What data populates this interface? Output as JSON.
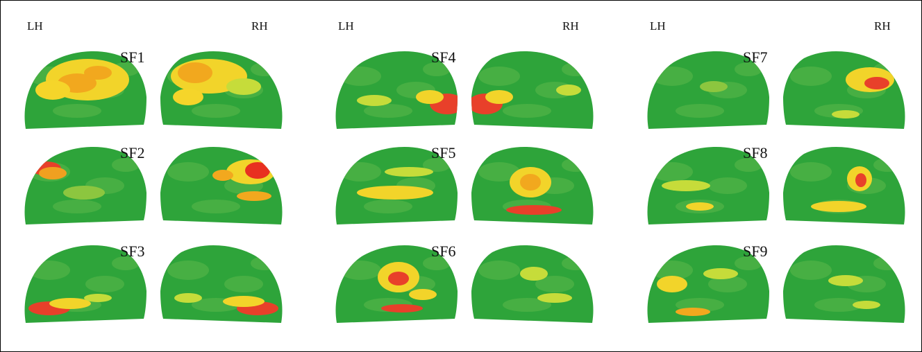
{
  "figure": {
    "columns": [
      {
        "left_label": "LH",
        "right_label": "RH",
        "maps": [
          {
            "label": "SF1",
            "left_blobs": [
              [
                95,
                45,
                60,
                30,
                "#f2d42a"
              ],
              [
                80,
                50,
                28,
                14,
                "#f2a81e"
              ],
              [
                45,
                60,
                25,
                14,
                "#f5d52a"
              ],
              [
                110,
                35,
                20,
                10,
                "#f2a81e"
              ]
            ],
            "right_blobs": [
              [
                70,
                40,
                55,
                25,
                "#f2d42a"
              ],
              [
                50,
                35,
                25,
                15,
                "#f2a81e"
              ],
              [
                40,
                70,
                22,
                12,
                "#f5d52a"
              ],
              [
                120,
                55,
                25,
                12,
                "#c6dc3a"
              ]
            ]
          },
          {
            "label": "SF2",
            "left_blobs": [
              [
                35,
                35,
                22,
                10,
                "#e8402a"
              ],
              [
                45,
                42,
                20,
                9,
                "#f0a020"
              ],
              [
                90,
                70,
                30,
                10,
                "#8cc63f"
              ]
            ],
            "right_blobs": [
              [
                130,
                40,
                35,
                18,
                "#f2d42a"
              ],
              [
                140,
                38,
                18,
                12,
                "#e83020"
              ],
              [
                90,
                45,
                15,
                8,
                "#f2a81e"
              ],
              [
                135,
                75,
                25,
                7,
                "#f2a81e"
              ]
            ]
          },
          {
            "label": "SF3",
            "left_blobs": [
              [
                40,
                95,
                30,
                10,
                "#e8402a"
              ],
              [
                70,
                88,
                30,
                8,
                "#f2d42a"
              ],
              [
                110,
                80,
                20,
                6,
                "#c6dc3a"
              ]
            ],
            "right_blobs": [
              [
                140,
                95,
                30,
                10,
                "#e8402a"
              ],
              [
                120,
                85,
                30,
                8,
                "#f2d42a"
              ],
              [
                40,
                80,
                20,
                7,
                "#c6dc3a"
              ]
            ]
          }
        ]
      },
      {
        "left_label": "LH",
        "right_label": "RH",
        "maps": [
          {
            "label": "SF4",
            "left_blobs": [
              [
                165,
                80,
                25,
                15,
                "#e8402a"
              ],
              [
                140,
                70,
                20,
                10,
                "#f2d42a"
              ],
              [
                60,
                75,
                25,
                8,
                "#c6dc3a"
              ]
            ],
            "right_blobs": [
              [
                20,
                80,
                25,
                15,
                "#e8402a"
              ],
              [
                40,
                70,
                20,
                10,
                "#f2d42a"
              ],
              [
                140,
                60,
                18,
                8,
                "#c6dc3a"
              ]
            ]
          },
          {
            "label": "SF5",
            "left_blobs": [
              [
                90,
                70,
                55,
                10,
                "#f2d42a"
              ],
              [
                110,
                40,
                35,
                7,
                "#c6dc3a"
              ]
            ],
            "right_blobs": [
              [
                85,
                55,
                30,
                22,
                "#f2d42a"
              ],
              [
                85,
                55,
                15,
                12,
                "#f2a81e"
              ],
              [
                90,
                95,
                40,
                7,
                "#e8402a"
              ]
            ]
          },
          {
            "label": "SF6",
            "left_blobs": [
              [
                95,
                50,
                30,
                22,
                "#f2d42a"
              ],
              [
                95,
                52,
                15,
                10,
                "#e8402a"
              ],
              [
                100,
                95,
                30,
                6,
                "#e8402a"
              ],
              [
                130,
                75,
                20,
                8,
                "#f2d42a"
              ]
            ],
            "right_blobs": [
              [
                90,
                45,
                20,
                10,
                "#c6dc3a"
              ],
              [
                120,
                80,
                25,
                7,
                "#c6dc3a"
              ]
            ]
          }
        ]
      },
      {
        "left_label": "LH",
        "right_label": "RH",
        "maps": [
          {
            "label": "SF7",
            "left_blobs": [
              [
                100,
                55,
                20,
                8,
                "#8cc63f"
              ]
            ],
            "right_blobs": [
              [
                125,
                45,
                35,
                18,
                "#f2d42a"
              ],
              [
                135,
                50,
                18,
                9,
                "#e8402a"
              ],
              [
                90,
                95,
                20,
                6,
                "#c6dc3a"
              ]
            ]
          },
          {
            "label": "SF8",
            "left_blobs": [
              [
                60,
                60,
                35,
                8,
                "#c6dc3a"
              ],
              [
                80,
                90,
                20,
                6,
                "#f2d42a"
              ]
            ],
            "right_blobs": [
              [
                110,
                50,
                18,
                18,
                "#f2d42a"
              ],
              [
                112,
                52,
                8,
                10,
                "#e8402a"
              ],
              [
                80,
                90,
                40,
                8,
                "#f2d42a"
              ]
            ]
          },
          {
            "label": "SF9",
            "left_blobs": [
              [
                40,
                60,
                22,
                12,
                "#f2d42a"
              ],
              [
                70,
                100,
                25,
                6,
                "#f2a81e"
              ],
              [
                110,
                45,
                25,
                8,
                "#c6dc3a"
              ]
            ],
            "right_blobs": [
              [
                90,
                55,
                25,
                8,
                "#c6dc3a"
              ],
              [
                120,
                90,
                20,
                6,
                "#c6dc3a"
              ]
            ]
          }
        ]
      }
    ]
  }
}
